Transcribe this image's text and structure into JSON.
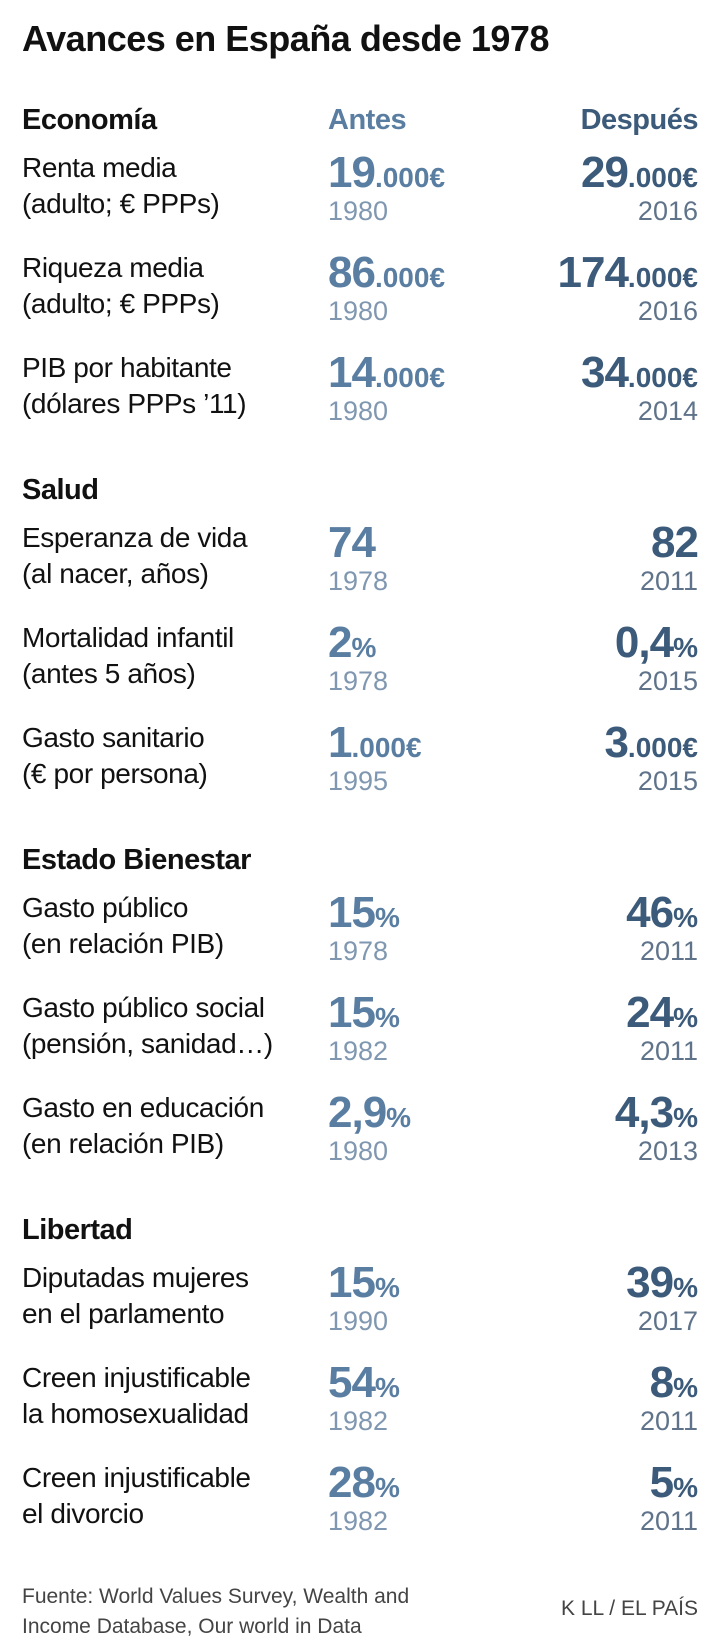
{
  "title": "Avances en España desde 1978",
  "columns": {
    "antes": "Antes",
    "despues": "Después"
  },
  "colors": {
    "antes": "#5a7ea2",
    "despues": "#3c5a7a"
  },
  "sections": [
    {
      "title": "Economía",
      "rows": [
        {
          "label1": "Renta media",
          "label2": "(adulto; € PPPs)",
          "antes_big": "19",
          "antes_suf": ".000€",
          "antes_year": "1980",
          "despues_big": "29",
          "despues_suf": ".000€",
          "despues_year": "2016"
        },
        {
          "label1": "Riqueza media",
          "label2": "(adulto; € PPPs)",
          "antes_big": "86",
          "antes_suf": ".000€",
          "antes_year": "1980",
          "despues_big": "174",
          "despues_suf": ".000€",
          "despues_year": "2016"
        },
        {
          "label1": "PIB por habitante",
          "label2": "(dólares PPPs ’11)",
          "antes_big": "14",
          "antes_suf": ".000€",
          "antes_year": "1980",
          "despues_big": "34",
          "despues_suf": ".000€",
          "despues_year": "2014"
        }
      ]
    },
    {
      "title": "Salud",
      "rows": [
        {
          "label1": "Esperanza de vida",
          "label2": "(al nacer, años)",
          "antes_big": "74",
          "antes_suf": "",
          "antes_year": "1978",
          "despues_big": "82",
          "despues_suf": "",
          "despues_year": "2011"
        },
        {
          "label1": "Mortalidad infantil",
          "label2": "(antes 5 años)",
          "antes_big": "2",
          "antes_suf": "%",
          "antes_year": "1978",
          "despues_big": "0,4",
          "despues_suf": "%",
          "despues_year": "2015"
        },
        {
          "label1": "Gasto sanitario",
          "label2": "(€ por persona)",
          "antes_big": "1",
          "antes_suf": ".000€",
          "antes_year": "1995",
          "despues_big": "3",
          "despues_suf": ".000€",
          "despues_year": "2015"
        }
      ]
    },
    {
      "title": "Estado Bienestar",
      "rows": [
        {
          "label1": "Gasto público",
          "label2": "(en relación PIB)",
          "antes_big": "15",
          "antes_suf": "%",
          "antes_year": "1978",
          "despues_big": "46",
          "despues_suf": "%",
          "despues_year": "2011"
        },
        {
          "label1": "Gasto público social",
          "label2": "(pensión, sanidad…)",
          "antes_big": "15",
          "antes_suf": "%",
          "antes_year": "1982",
          "despues_big": "24",
          "despues_suf": "%",
          "despues_year": "2011"
        },
        {
          "label1": "Gasto en educación",
          "label2": "(en relación PIB)",
          "antes_big": "2,9",
          "antes_suf": "%",
          "antes_year": "1980",
          "despues_big": "4,3",
          "despues_suf": "%",
          "despues_year": "2013"
        }
      ]
    },
    {
      "title": "Libertad",
      "rows": [
        {
          "label1": "Diputadas mujeres",
          "label2": "en el parlamento",
          "antes_big": "15",
          "antes_suf": "%",
          "antes_year": "1990",
          "despues_big": "39",
          "despues_suf": "%",
          "despues_year": "2017"
        },
        {
          "label1": "Creen injustificable",
          "label2": "la homosexualidad",
          "antes_big": "54",
          "antes_suf": "%",
          "antes_year": "1982",
          "despues_big": "8",
          "despues_suf": "%",
          "despues_year": "2011"
        },
        {
          "label1": "Creen injustificable",
          "label2": "el divorcio",
          "antes_big": "28",
          "antes_suf": "%",
          "antes_year": "1982",
          "despues_big": "5",
          "despues_suf": "%",
          "despues_year": "2011"
        }
      ]
    }
  ],
  "footer": {
    "source_line1": "Fuente: World Values Survey, Wealth and",
    "source_line2": "Income Database, Our world in Data",
    "credit": "K LL / EL PAÍS"
  }
}
